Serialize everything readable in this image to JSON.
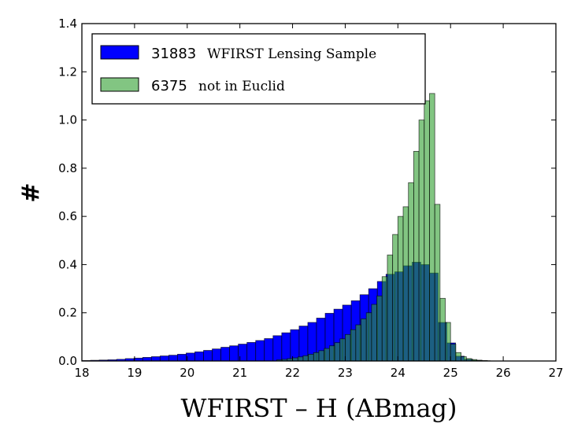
{
  "chart_data": {
    "type": "bar",
    "xlabel": "WFIRST – H (ABmag)",
    "ylabel": "#",
    "xlim": [
      18,
      27
    ],
    "ylim": [
      0,
      1.4
    ],
    "xticks": [
      "18",
      "19",
      "20",
      "21",
      "22",
      "23",
      "24",
      "25",
      "26",
      "27"
    ],
    "yticks": [
      "0.0",
      "0.2",
      "0.4",
      "0.6",
      "0.8",
      "1.0",
      "1.2",
      "1.4"
    ],
    "bin_width_series1": 0.165,
    "bin_width_series2": 0.1,
    "legend_position": "top-left",
    "series": [
      {
        "count": "31883",
        "name": "WFIRST Lensing Sample",
        "color": "#0000ff",
        "alpha": 1.0,
        "x": [
          18.0,
          18.165,
          18.33,
          18.495,
          18.66,
          18.825,
          18.99,
          19.155,
          19.32,
          19.485,
          19.65,
          19.815,
          19.98,
          20.145,
          20.31,
          20.475,
          20.64,
          20.805,
          20.97,
          21.135,
          21.3,
          21.465,
          21.63,
          21.795,
          21.96,
          22.125,
          22.29,
          22.455,
          22.62,
          22.785,
          22.95,
          23.115,
          23.28,
          23.445,
          23.61,
          23.775,
          23.94,
          24.105,
          24.27,
          24.435,
          24.6,
          24.765,
          24.93,
          25.095,
          25.26,
          25.425,
          25.59
        ],
        "values": [
          0.002,
          0.003,
          0.004,
          0.005,
          0.007,
          0.01,
          0.012,
          0.015,
          0.018,
          0.021,
          0.024,
          0.028,
          0.033,
          0.038,
          0.044,
          0.05,
          0.057,
          0.063,
          0.07,
          0.077,
          0.085,
          0.093,
          0.105,
          0.117,
          0.13,
          0.145,
          0.16,
          0.178,
          0.198,
          0.215,
          0.232,
          0.25,
          0.275,
          0.3,
          0.33,
          0.36,
          0.37,
          0.395,
          0.41,
          0.4,
          0.365,
          0.16,
          0.075,
          0.02,
          0.007,
          0.003,
          0.001
        ]
      },
      {
        "count": "6375",
        "name": "not in Euclid",
        "color": "#2e9f2e",
        "alpha": 0.6,
        "x": [
          21.7,
          21.8,
          21.9,
          22.0,
          22.1,
          22.2,
          22.3,
          22.4,
          22.5,
          22.6,
          22.7,
          22.8,
          22.9,
          23.0,
          23.1,
          23.2,
          23.3,
          23.4,
          23.5,
          23.6,
          23.7,
          23.8,
          23.9,
          24.0,
          24.1,
          24.2,
          24.3,
          24.4,
          24.5,
          24.6,
          24.7,
          24.8,
          24.9,
          25.0,
          25.1,
          25.2,
          25.3,
          25.4,
          25.5,
          25.6
        ],
        "values": [
          0.005,
          0.007,
          0.01,
          0.013,
          0.017,
          0.022,
          0.028,
          0.035,
          0.043,
          0.052,
          0.063,
          0.076,
          0.092,
          0.11,
          0.13,
          0.15,
          0.175,
          0.2,
          0.235,
          0.27,
          0.35,
          0.44,
          0.525,
          0.6,
          0.64,
          0.74,
          0.87,
          1.0,
          1.08,
          1.11,
          0.65,
          0.26,
          0.16,
          0.07,
          0.035,
          0.018,
          0.01,
          0.006,
          0.003,
          0.002
        ]
      }
    ]
  }
}
